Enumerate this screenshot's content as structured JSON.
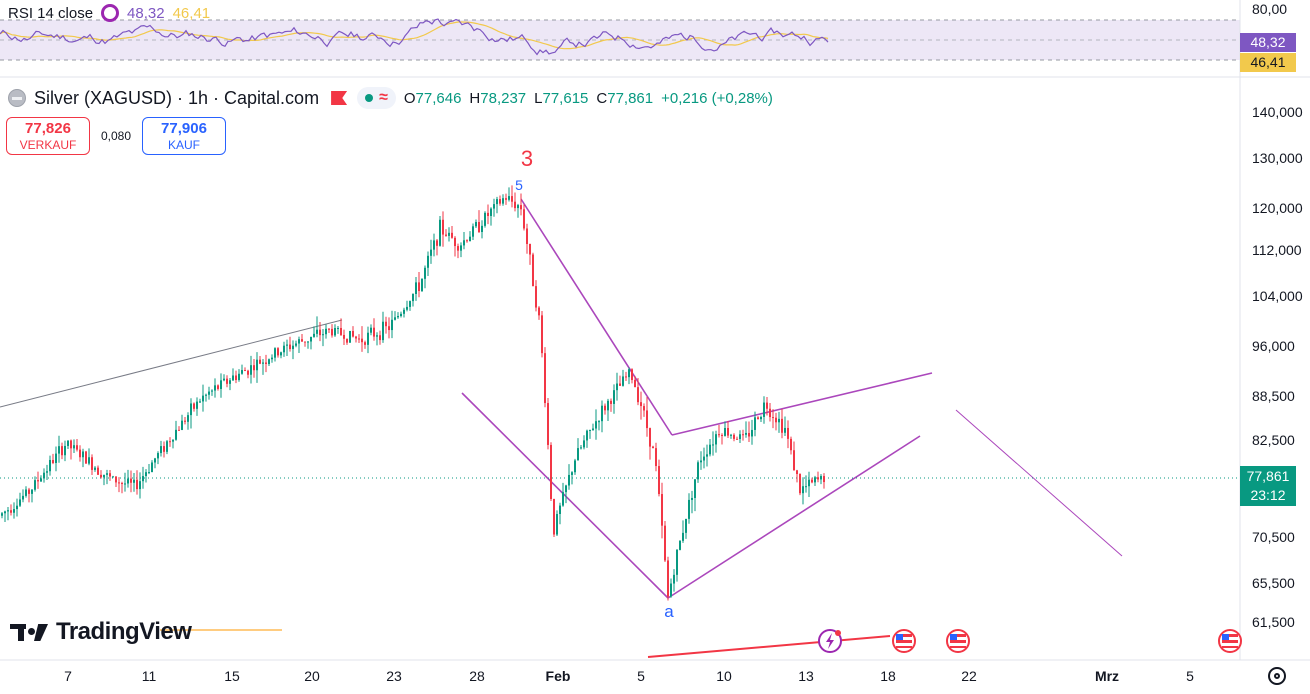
{
  "header": {
    "symbol_title": "Silver (XAGUSD) · 1h · Capital.com",
    "ohlc": {
      "o_label": "O",
      "o_value": "77,646",
      "h_label": "H",
      "h_value": "78,237",
      "l_label": "L",
      "l_value": "77,615",
      "c_label": "C",
      "c_value": "77,861",
      "change": "+0,216 (+0,28%)"
    },
    "flag_icon": "flag-icon",
    "status_icon": "market-open-dot"
  },
  "trade": {
    "sell_price": "77,826",
    "sell_label": "VERKAUF",
    "spread": "0,080",
    "buy_price": "77,906",
    "buy_label": "KAUF"
  },
  "rsi": {
    "title": "RSI 14 close",
    "value_rsi": "48,32",
    "value_ma": "46,41",
    "axis_top": "80,00",
    "bands": [
      70,
      50,
      30
    ],
    "colors": {
      "rsi": "#7e57c2",
      "ma": "#f2c94c",
      "band_fill": "#ede7f6"
    }
  },
  "price_axis": {
    "labels": [
      "140,000",
      "130,000",
      "120,000",
      "112,000",
      "104,000",
      "96,000",
      "88,500",
      "82,500",
      "77,861",
      "70,500",
      "65,500",
      "61,500"
    ],
    "current_price": "77,861",
    "countdown": "23:12"
  },
  "time_axis": {
    "labels": [
      "7",
      "11",
      "15",
      "20",
      "23",
      "28",
      "Feb",
      "5",
      "10",
      "13",
      "18",
      "22",
      "Mrz",
      "5"
    ]
  },
  "brand": {
    "name": "TradingView"
  },
  "chart_data": {
    "type": "candlestick",
    "title": "Silver (XAGUSD) · 1h · Capital.com",
    "y_scale": "log",
    "y_ticks": [
      140000,
      130000,
      120000,
      112000,
      104000,
      96000,
      88500,
      82500,
      70500,
      65500,
      61500
    ],
    "x_ticks": [
      "7",
      "11",
      "15",
      "20",
      "23",
      "28",
      "Feb",
      "5",
      "10",
      "13",
      "18",
      "22",
      "Mrz",
      "5"
    ],
    "path": [
      [
        "7",
        73.0
      ],
      [
        "7",
        76.0
      ],
      [
        "7",
        82.0
      ],
      [
        "11",
        77.5
      ],
      [
        "11",
        76.5
      ],
      [
        "15",
        88.0
      ],
      [
        "15",
        91.0
      ],
      [
        "20",
        96.0
      ],
      [
        "20",
        98.5
      ],
      [
        "23",
        97.0
      ],
      [
        "23",
        99.0
      ],
      [
        "28",
        106.0
      ],
      [
        "28",
        116.0
      ],
      [
        "28",
        113.0
      ],
      [
        "28",
        122.0
      ],
      [
        "28",
        120.0
      ],
      [
        "Feb",
        99.0
      ],
      [
        "Feb",
        71.0
      ],
      [
        "Feb",
        80.0
      ],
      [
        "Feb",
        86.0
      ],
      [
        "5",
        92.0
      ],
      [
        "5",
        88.0
      ],
      [
        "5",
        80.0
      ],
      [
        "5",
        64.0
      ],
      [
        "10",
        80.0
      ],
      [
        "10",
        84.0
      ],
      [
        "10",
        82.5
      ],
      [
        "13",
        87.5
      ],
      [
        "13",
        84.0
      ],
      [
        "13",
        76.0
      ],
      [
        "13",
        77.861
      ]
    ],
    "last_price": 77.861,
    "annotations": [
      {
        "text": "3",
        "color": "#f23645"
      },
      {
        "text": "5",
        "color": "#2962ff"
      },
      {
        "text": "a",
        "color": "#2962ff"
      }
    ],
    "grid": false,
    "colors": {
      "up": "#089981",
      "down": "#f23645",
      "wedge": "#ab47bc",
      "trend": "#787b86"
    }
  }
}
